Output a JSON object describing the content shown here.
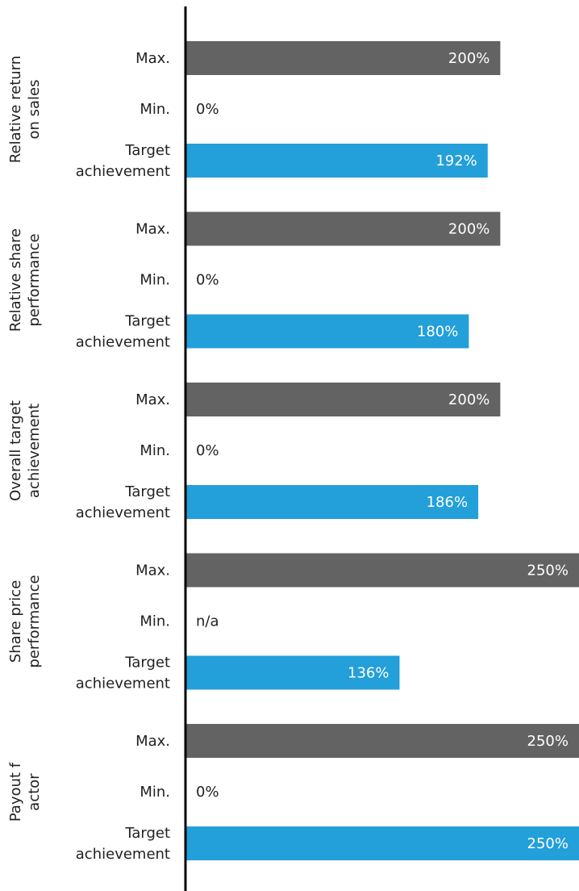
{
  "chart_data": {
    "type": "bar",
    "orientation": "horizontal",
    "axis_visible": false,
    "colors": {
      "max": "#636363",
      "target": "#239fd9",
      "axis": "#000000"
    },
    "groups": [
      {
        "label_lines": [
          "Relative return",
          "on sales"
        ],
        "rows": [
          {
            "kind": "max",
            "label_lines": [
              "Max."
            ],
            "value": 200,
            "value_label": "200%"
          },
          {
            "kind": "min",
            "label_lines": [
              "Min."
            ],
            "value": 0,
            "value_label": "0%"
          },
          {
            "kind": "target",
            "label_lines": [
              "Target",
              "achievement"
            ],
            "value": 192,
            "value_label": "192%"
          }
        ]
      },
      {
        "label_lines": [
          "Relative share",
          "performance"
        ],
        "rows": [
          {
            "kind": "max",
            "label_lines": [
              "Max."
            ],
            "value": 200,
            "value_label": "200%"
          },
          {
            "kind": "min",
            "label_lines": [
              "Min."
            ],
            "value": 0,
            "value_label": "0%"
          },
          {
            "kind": "target",
            "label_lines": [
              "Target",
              "achievement"
            ],
            "value": 180,
            "value_label": "180%"
          }
        ]
      },
      {
        "label_lines": [
          "Overall target",
          "achievement"
        ],
        "rows": [
          {
            "kind": "max",
            "label_lines": [
              "Max."
            ],
            "value": 200,
            "value_label": "200%"
          },
          {
            "kind": "min",
            "label_lines": [
              "Min."
            ],
            "value": 0,
            "value_label": "0%"
          },
          {
            "kind": "target",
            "label_lines": [
              "Target",
              "achievement"
            ],
            "value": 186,
            "value_label": "186%"
          }
        ]
      },
      {
        "label_lines": [
          "Share price",
          "performance"
        ],
        "rows": [
          {
            "kind": "max",
            "label_lines": [
              "Max."
            ],
            "value": 250,
            "value_label": "250%"
          },
          {
            "kind": "min",
            "label_lines": [
              "Min."
            ],
            "value": null,
            "value_label": "n/a"
          },
          {
            "kind": "target",
            "label_lines": [
              "Target",
              "achievement"
            ],
            "value": 136,
            "value_label": "136%"
          }
        ]
      },
      {
        "label_lines": [
          "Payout f",
          "actor"
        ],
        "rows": [
          {
            "kind": "max",
            "label_lines": [
              "Max."
            ],
            "value": 250,
            "value_label": "250%"
          },
          {
            "kind": "min",
            "label_lines": [
              "Min."
            ],
            "value": 0,
            "value_label": "0%"
          },
          {
            "kind": "target",
            "label_lines": [
              "Target",
              "achievement"
            ],
            "value": 250,
            "value_label": "250%"
          }
        ]
      }
    ]
  }
}
